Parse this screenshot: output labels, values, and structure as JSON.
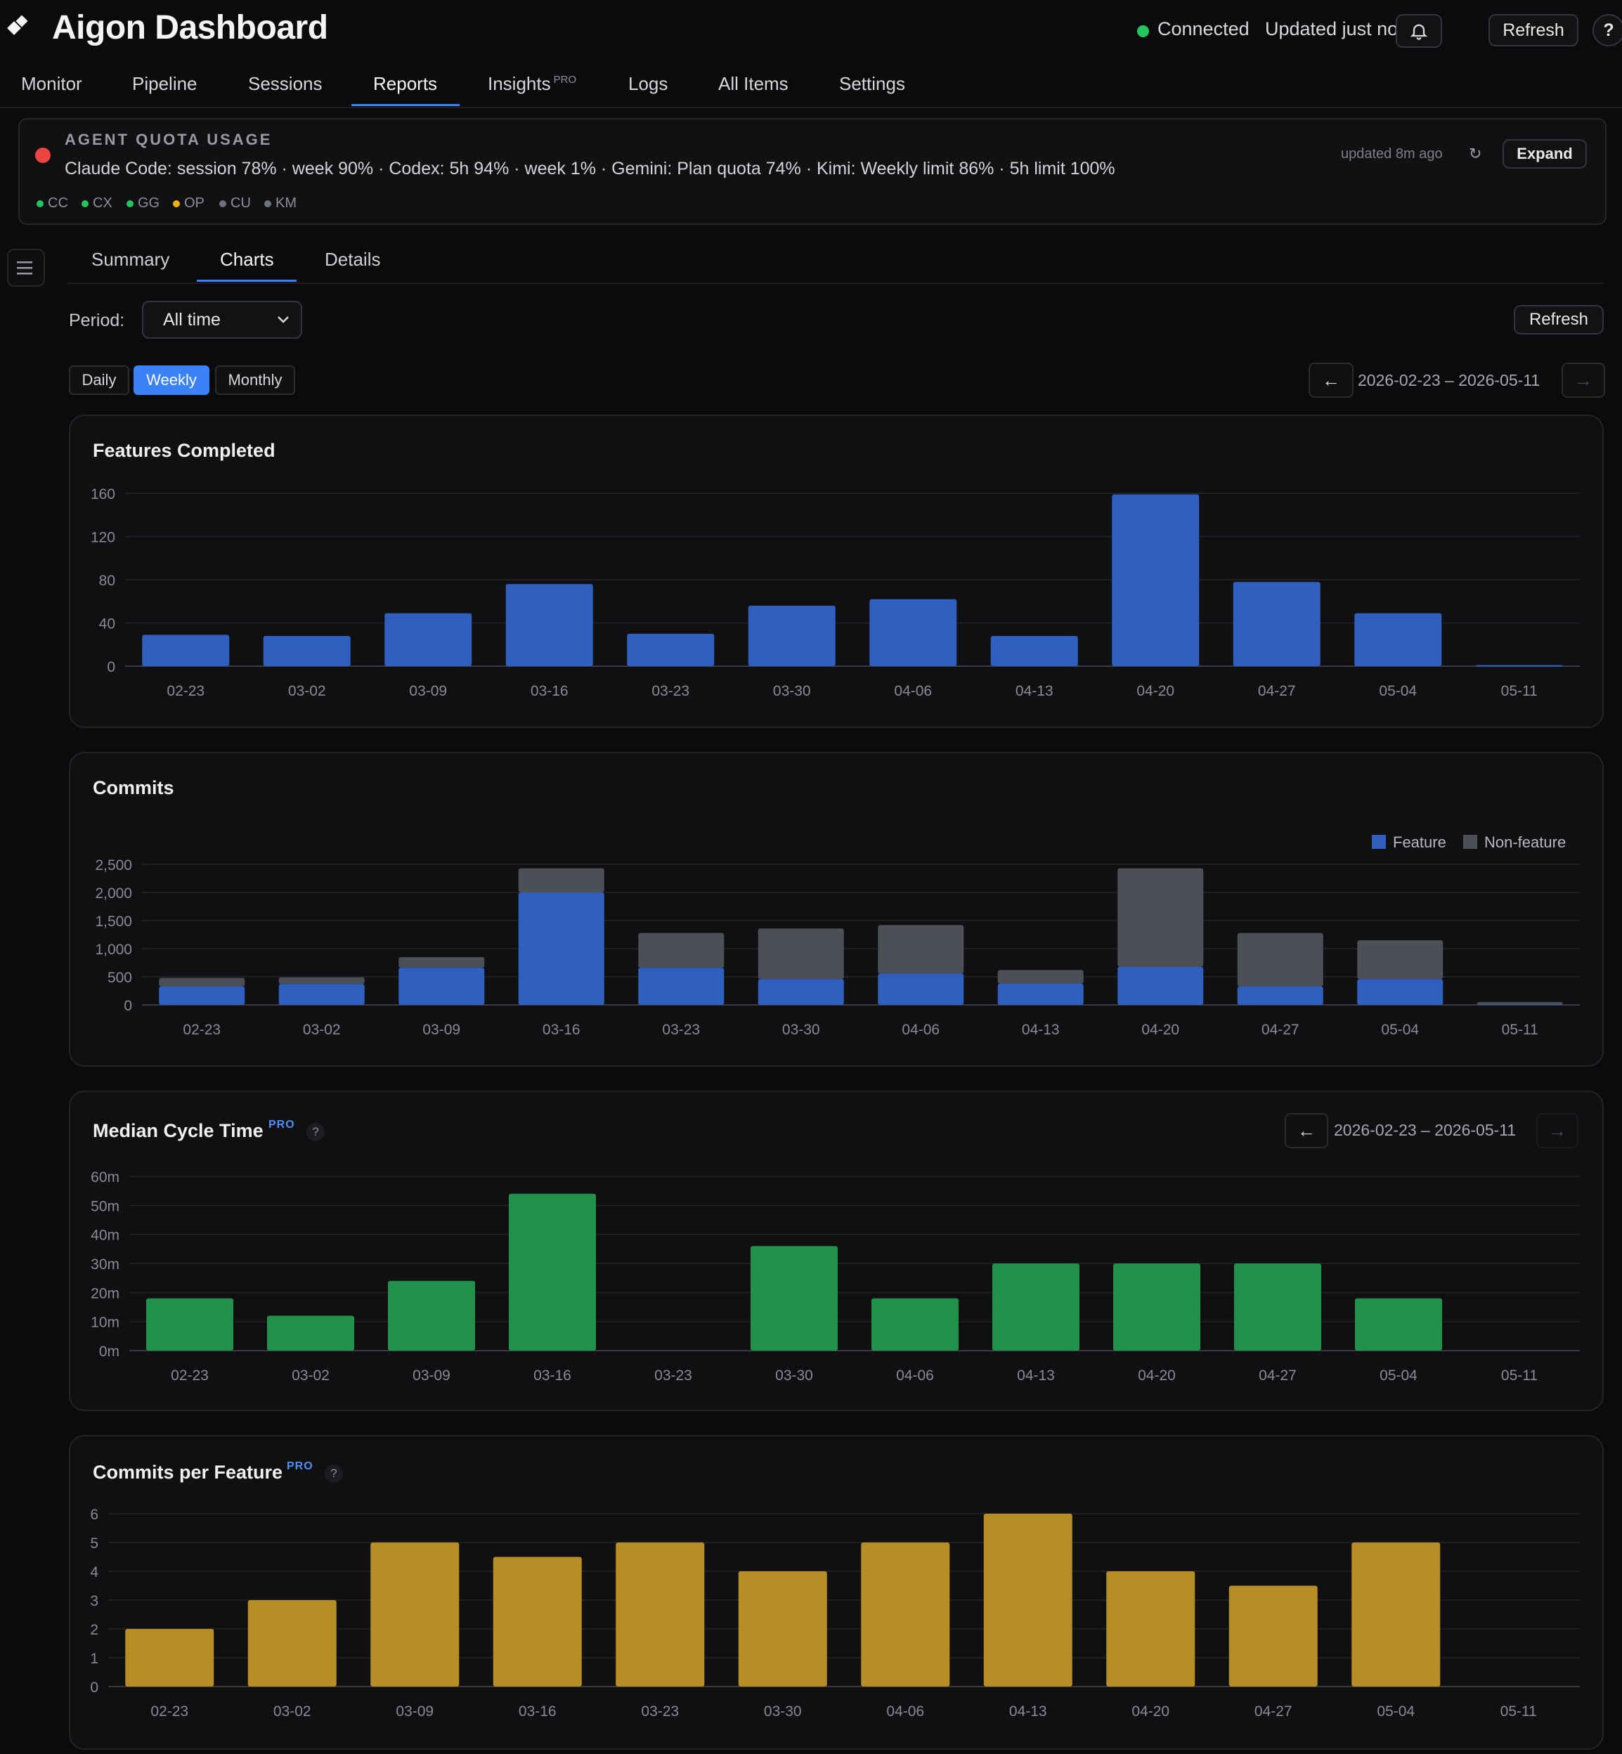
{
  "app": {
    "title": "Aigon Dashboard"
  },
  "header": {
    "status_label": "Connected",
    "updated_label": "Updated just now",
    "refresh_label": "Refresh",
    "help_label": "?"
  },
  "nav": {
    "items": [
      {
        "label": "Monitor"
      },
      {
        "label": "Pipeline"
      },
      {
        "label": "Sessions"
      },
      {
        "label": "Reports"
      },
      {
        "label": "Insights",
        "badge": "PRO"
      },
      {
        "label": "Logs"
      },
      {
        "label": "All Items"
      },
      {
        "label": "Settings"
      }
    ],
    "active": "Reports"
  },
  "quota": {
    "title": "AGENT QUOTA USAGE",
    "summary": "Claude Code: session 78% · week 90% · Codex: 5h 94% · week 1% · Gemini: Plan quota 74% · Kimi: Weekly limit 86% · 5h limit 100%",
    "updated": "updated 8m ago",
    "refresh_icon": "↻",
    "expand_label": "Expand",
    "agents": [
      {
        "code": "CC",
        "color": "#22c55e"
      },
      {
        "code": "CX",
        "color": "#22c55e"
      },
      {
        "code": "GG",
        "color": "#22c55e"
      },
      {
        "code": "OP",
        "color": "#eab308"
      },
      {
        "code": "CU",
        "color": "#6b7280"
      },
      {
        "code": "KM",
        "color": "#6b7280"
      }
    ]
  },
  "sidebar_toggle_icon": "menu-icon",
  "subtabs": {
    "items": [
      "Summary",
      "Charts",
      "Details"
    ],
    "active": "Charts"
  },
  "controls": {
    "period_label": "Period:",
    "period_value": "All time",
    "refresh_label": "Refresh",
    "granularity": [
      "Daily",
      "Weekly",
      "Monthly"
    ],
    "granularity_active": "Weekly",
    "range": "2026-02-23 – 2026-05-11",
    "prev_icon": "←",
    "next_icon": "→"
  },
  "chart_data": [
    {
      "type": "bar",
      "title": "Features Completed",
      "categories": [
        "02-23",
        "03-02",
        "03-09",
        "03-16",
        "03-23",
        "03-30",
        "04-06",
        "04-13",
        "04-20",
        "04-27",
        "05-04",
        "05-11"
      ],
      "values": [
        29,
        28,
        49,
        76,
        30,
        56,
        62,
        28,
        159,
        78,
        49,
        1
      ],
      "yticks": [
        "0",
        "40",
        "80",
        "120",
        "160"
      ],
      "ylim": [
        0,
        160
      ],
      "color": "#2f5fbf",
      "grid": true
    },
    {
      "type": "bar",
      "stacked": true,
      "title": "Commits",
      "categories": [
        "02-23",
        "03-02",
        "03-09",
        "03-16",
        "03-23",
        "03-30",
        "04-06",
        "04-13",
        "04-20",
        "04-27",
        "05-04",
        "05-11"
      ],
      "series": [
        {
          "name": "Feature",
          "color": "#2f5fbf",
          "values": [
            330,
            370,
            660,
            2000,
            660,
            460,
            560,
            380,
            680,
            330,
            460,
            10
          ]
        },
        {
          "name": "Non-feature",
          "color": "#4d4f57",
          "values": [
            150,
            120,
            190,
            430,
            620,
            900,
            860,
            240,
            1750,
            950,
            690,
            40
          ]
        }
      ],
      "yticks": [
        "0",
        "500",
        "1,000",
        "1,500",
        "2,000",
        "2,500"
      ],
      "ylim": [
        0,
        2500
      ],
      "legend": "top-right",
      "grid": true
    },
    {
      "type": "bar",
      "title": "Median Cycle Time",
      "badge": "PRO",
      "help": "?",
      "range": "2026-02-23 – 2026-05-11",
      "categories": [
        "02-23",
        "03-02",
        "03-09",
        "03-16",
        "03-23",
        "03-30",
        "04-06",
        "04-13",
        "04-20",
        "04-27",
        "05-04",
        "05-11"
      ],
      "values": [
        18,
        12,
        24,
        54,
        0,
        36,
        18,
        30,
        30,
        30,
        18,
        0
      ],
      "yticks": [
        "0m",
        "10m",
        "20m",
        "30m",
        "40m",
        "50m",
        "60m"
      ],
      "ylim": [
        0,
        60
      ],
      "color": "#22924a",
      "grid": true
    },
    {
      "type": "bar",
      "title": "Commits per Feature",
      "badge": "PRO",
      "help": "?",
      "categories": [
        "02-23",
        "03-02",
        "03-09",
        "03-16",
        "03-23",
        "03-30",
        "04-06",
        "04-13",
        "04-20",
        "04-27",
        "05-04",
        "05-11"
      ],
      "values": [
        2,
        3,
        5,
        4.5,
        5,
        4,
        5,
        6,
        4,
        3.5,
        5,
        0
      ],
      "yticks": [
        "0",
        "1",
        "2",
        "3",
        "4",
        "5",
        "6"
      ],
      "ylim": [
        0,
        6
      ],
      "color": "#b78d26",
      "grid": true
    }
  ]
}
